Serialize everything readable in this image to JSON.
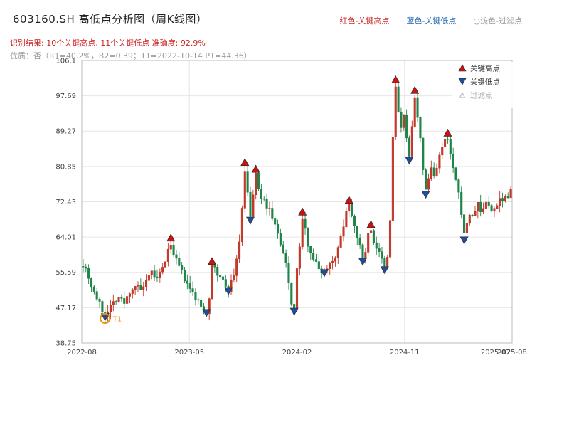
{
  "header": {
    "title": "603160.SH 高低点分析图（周K线图）",
    "legend_top": [
      {
        "label": "红色-关键高点",
        "color": "#cc2b2b"
      },
      {
        "label": "蓝色-关键低点",
        "color": "#2b6cb0"
      },
      {
        "label": "○浅色-过滤点",
        "color": "#999999"
      }
    ],
    "result_line": "识别结果: 10个关键高点, 11个关键低点  准确度: 92.9%",
    "quality_line": "优质：否（R1=40.2%，B2=0.39；T1=2022-10-14 P1=44.36）"
  },
  "chart_data": {
    "type": "candlestick",
    "title": "603160.SH 高低点分析图（周K线图）",
    "period": "weekly",
    "ylim": [
      38.75,
      106.1
    ],
    "y_ticks": [
      {
        "label": "106.1",
        "value": 106.1
      },
      {
        "label": "97.69",
        "value": 97.69
      },
      {
        "label": "89.27",
        "value": 89.27
      },
      {
        "label": "80.85",
        "value": 80.85
      },
      {
        "label": "72.43",
        "value": 72.43
      },
      {
        "label": "64.01",
        "value": 64.01
      },
      {
        "label": "55.59",
        "value": 55.59
      },
      {
        "label": "47.17",
        "value": 47.17
      },
      {
        "label": "38.75",
        "value": 38.75
      }
    ],
    "x_ticks": [
      {
        "label": "2022-08",
        "week": 0
      },
      {
        "label": "2023-05",
        "week": 39
      },
      {
        "label": "2024-02",
        "week": 78
      },
      {
        "label": "2024-11",
        "week": 117
      },
      {
        "label": "2025-08",
        "week": 156
      }
    ],
    "end_label": "2025-07",
    "end_label_week": 150,
    "weeks_total": 157,
    "seed": 7,
    "anchors": [
      [
        0,
        57.5
      ],
      [
        1,
        56.5
      ],
      [
        3,
        52.5
      ],
      [
        5,
        49.5
      ],
      [
        7,
        46.5
      ],
      [
        8,
        45.2
      ],
      [
        9,
        46.8
      ],
      [
        11,
        48.5
      ],
      [
        13,
        49.8
      ],
      [
        15,
        48.2
      ],
      [
        17,
        51
      ],
      [
        19,
        52.5
      ],
      [
        21,
        51.3
      ],
      [
        23,
        53
      ],
      [
        25,
        55.5
      ],
      [
        27,
        54
      ],
      [
        29,
        56.5
      ],
      [
        31,
        60.5
      ],
      [
        32,
        62.8
      ],
      [
        33,
        59.5
      ],
      [
        35,
        57
      ],
      [
        38,
        52.5
      ],
      [
        41,
        49.5
      ],
      [
        43,
        47.5
      ],
      [
        45,
        46.2
      ],
      [
        46,
        50
      ],
      [
        47,
        56.5
      ],
      [
        48,
        57
      ],
      [
        49,
        55
      ],
      [
        51,
        53.5
      ],
      [
        53,
        51.6
      ],
      [
        55,
        55
      ],
      [
        56,
        59
      ],
      [
        57,
        63
      ],
      [
        58,
        71
      ],
      [
        59,
        80
      ],
      [
        60,
        74
      ],
      [
        61,
        69
      ],
      [
        62,
        74
      ],
      [
        63,
        79
      ],
      [
        64,
        75
      ],
      [
        66,
        72.5
      ],
      [
        68,
        70.5
      ],
      [
        70,
        67
      ],
      [
        72,
        62
      ],
      [
        74,
        57.5
      ],
      [
        75,
        53
      ],
      [
        76,
        48.5
      ],
      [
        77,
        46.8
      ],
      [
        78,
        56
      ],
      [
        79,
        62
      ],
      [
        80,
        68
      ],
      [
        81,
        65.5
      ],
      [
        82,
        62.5
      ],
      [
        84,
        59
      ],
      [
        86,
        56.5
      ],
      [
        88,
        55.8
      ],
      [
        89,
        57
      ],
      [
        91,
        58.5
      ],
      [
        93,
        61
      ],
      [
        95,
        67
      ],
      [
        96,
        70.5
      ],
      [
        97,
        71.8
      ],
      [
        98,
        69.5
      ],
      [
        100,
        64.5
      ],
      [
        102,
        58.7
      ],
      [
        103,
        61
      ],
      [
        104,
        64.5
      ],
      [
        105,
        65.8
      ],
      [
        106,
        63
      ],
      [
        108,
        60
      ],
      [
        110,
        56.8
      ],
      [
        111,
        59
      ],
      [
        112,
        68
      ],
      [
        113,
        88
      ],
      [
        114,
        99.5
      ],
      [
        115,
        94
      ],
      [
        116,
        90
      ],
      [
        117,
        93
      ],
      [
        118,
        87
      ],
      [
        119,
        83
      ],
      [
        120,
        91
      ],
      [
        121,
        97.5
      ],
      [
        122,
        92
      ],
      [
        123,
        87
      ],
      [
        124,
        80.5
      ],
      [
        125,
        75
      ],
      [
        126,
        78
      ],
      [
        127,
        80.5
      ],
      [
        128,
        78.5
      ],
      [
        129,
        81
      ],
      [
        130,
        83.5
      ],
      [
        131,
        85
      ],
      [
        132,
        87
      ],
      [
        133,
        87.2
      ],
      [
        134,
        83.5
      ],
      [
        135,
        80
      ],
      [
        136,
        77.5
      ],
      [
        137,
        74
      ],
      [
        138,
        70
      ],
      [
        139,
        64.5
      ],
      [
        140,
        67.5
      ],
      [
        141,
        69.5
      ],
      [
        142,
        68.5
      ],
      [
        143,
        70.5
      ],
      [
        144,
        72
      ],
      [
        145,
        70
      ],
      [
        146,
        71
      ],
      [
        147,
        72.5
      ],
      [
        148,
        71.5
      ],
      [
        149,
        70
      ],
      [
        150,
        71
      ],
      [
        151,
        72
      ],
      [
        152,
        73.5
      ],
      [
        153,
        72.5
      ],
      [
        154,
        74.5
      ],
      [
        155,
        73.5
      ],
      [
        156,
        75.5
      ]
    ],
    "key_highs": [
      {
        "week": 32,
        "value": 63.8
      },
      {
        "week": 47,
        "value": 58.2
      },
      {
        "week": 59,
        "value": 81.8
      },
      {
        "week": 63,
        "value": 80.2
      },
      {
        "week": 80,
        "value": 70.0
      },
      {
        "week": 97,
        "value": 72.8
      },
      {
        "week": 105,
        "value": 67.0
      },
      {
        "week": 114,
        "value": 101.5
      },
      {
        "week": 121,
        "value": 99.0
      },
      {
        "week": 133,
        "value": 88.8
      }
    ],
    "key_lows": [
      {
        "week": 8,
        "value": 45.0
      },
      {
        "week": 45,
        "value": 46.0
      },
      {
        "week": 53,
        "value": 51.2
      },
      {
        "week": 61,
        "value": 68.0
      },
      {
        "week": 77,
        "value": 46.3
      },
      {
        "week": 88,
        "value": 55.5
      },
      {
        "week": 102,
        "value": 58.2
      },
      {
        "week": 110,
        "value": 56.2
      },
      {
        "week": 119,
        "value": 82.3
      },
      {
        "week": 125,
        "value": 74.2
      },
      {
        "week": 139,
        "value": 63.3
      }
    ],
    "filter_point": {
      "week": 8,
      "value": 44.6,
      "label": "T1",
      "date": "2022-10-14",
      "price": 44.36
    },
    "legend": [
      {
        "label": "关键高点",
        "marker": "triangle-up",
        "color": "#cc1111"
      },
      {
        "label": "关键低点",
        "marker": "triangle-down",
        "color": "#1f4e9c"
      },
      {
        "label": "过滤点",
        "marker": "triangle-up-outline",
        "color": "#aaaaaa"
      }
    ],
    "colors": {
      "up": "#c0392b",
      "down": "#1e8449",
      "high_marker": "#cc1111",
      "low_marker": "#1f4e9c",
      "filter_marker": "#e8930c",
      "grid": "#e6e6e6",
      "axis": "#bbbbbb"
    }
  }
}
